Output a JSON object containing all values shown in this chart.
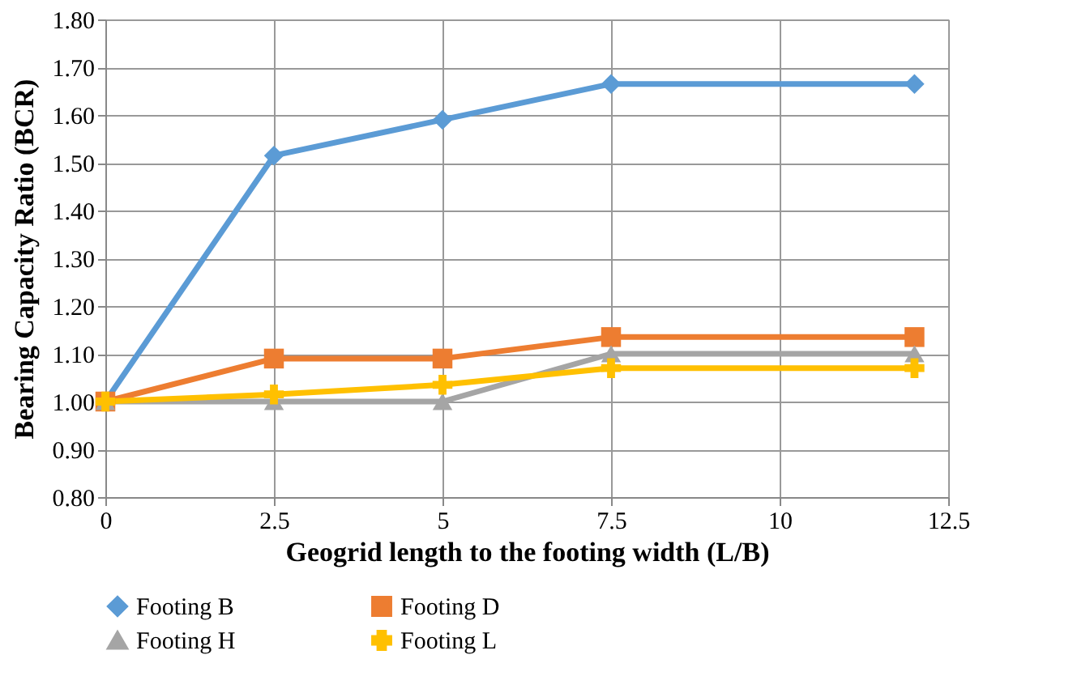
{
  "chart_data": {
    "type": "line",
    "xlabel": "Geogrid length to the footing width (L/B)",
    "ylabel": "Bearing Capacity Ratio (BCR)",
    "x": [
      0,
      2.5,
      5,
      7.5,
      12
    ],
    "series": [
      {
        "name": "Footing B",
        "color": "#5b9bd5",
        "marker": "diamond",
        "values": [
          1.0,
          1.515,
          1.59,
          1.665,
          1.665
        ]
      },
      {
        "name": "Footing D",
        "color": "#ed7d31",
        "marker": "square",
        "values": [
          1.0,
          1.09,
          1.09,
          1.135,
          1.135
        ]
      },
      {
        "name": "Footing H",
        "color": "#a5a5a5",
        "marker": "triangle",
        "values": [
          1.0,
          1.0,
          1.0,
          1.1,
          1.1
        ]
      },
      {
        "name": "Footing L",
        "color": "#ffc000",
        "marker": "cross",
        "values": [
          1.0,
          1.015,
          1.035,
          1.07,
          1.07
        ]
      }
    ],
    "xlim": [
      0,
      12.5
    ],
    "xticks": [
      0,
      2.5,
      5,
      7.5,
      10,
      12.5
    ],
    "ylim": [
      0.8,
      1.8
    ],
    "yticks": [
      {
        "value": 0.8,
        "label": "0.80"
      },
      {
        "value": 0.9,
        "label": "0.90"
      },
      {
        "value": 1.0,
        "label": "1.00"
      },
      {
        "value": 1.1,
        "label": "1.10"
      },
      {
        "value": 1.2,
        "label": "1.20"
      },
      {
        "value": 1.3,
        "label": "1.30"
      },
      {
        "value": 1.4,
        "label": "1.40"
      },
      {
        "value": 1.5,
        "label": "1.50"
      },
      {
        "value": 1.6,
        "label": "1.60"
      },
      {
        "value": 1.7,
        "label": "1.70"
      },
      {
        "value": 1.8,
        "label": "1.80"
      }
    ],
    "grid": true,
    "legend": "bottom",
    "line_style": "solid"
  }
}
